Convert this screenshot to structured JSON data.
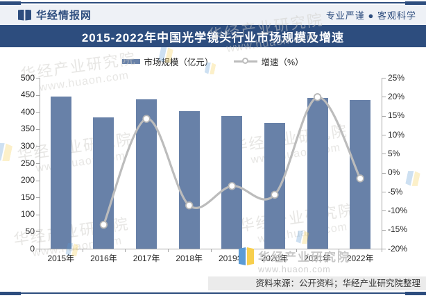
{
  "header": {
    "brand": "华经情报网",
    "slogan": "专业严谨 ● 客观科学"
  },
  "title_bar": {
    "title": "2015-2022年中国光学镜头行业市场规模及增速"
  },
  "watermark": {
    "name": "华经产业研究院",
    "url": "www.huaon.com"
  },
  "footer": {
    "source": "资料来源：公开资料；华经产业研究院整理"
  },
  "colors": {
    "navy": "#2d4d7e",
    "bar": "#6881a8",
    "line": "#bcbcbc",
    "header_bg": "#eef1f6",
    "footer_bg": "#ebebeb",
    "axis": "#a6a6a6"
  },
  "chart_data": {
    "type": "bar",
    "title": "2015-2022年中国光学镜头行业市场规模及增速",
    "categories": [
      "2015年",
      "2016年",
      "2017年",
      "2018年",
      "2019年",
      "2020年",
      "2021年",
      "2022年"
    ],
    "series": [
      {
        "name": "市场规模（亿元）",
        "kind": "bar",
        "axis": "left",
        "values": [
          445,
          384,
          438,
          402,
          388,
          368,
          441,
          435
        ]
      },
      {
        "name": "增速（%）",
        "kind": "line",
        "axis": "right",
        "values": [
          null,
          -13.7,
          14.2,
          -8.6,
          -3.5,
          -5.8,
          19.9,
          -1.5
        ]
      }
    ],
    "left_axis": {
      "min": 0,
      "max": 500,
      "step": 50,
      "suffix": ""
    },
    "right_axis": {
      "min": -20,
      "max": 25,
      "step": 5,
      "suffix": "%"
    },
    "grid": false,
    "legend_position": "top"
  }
}
